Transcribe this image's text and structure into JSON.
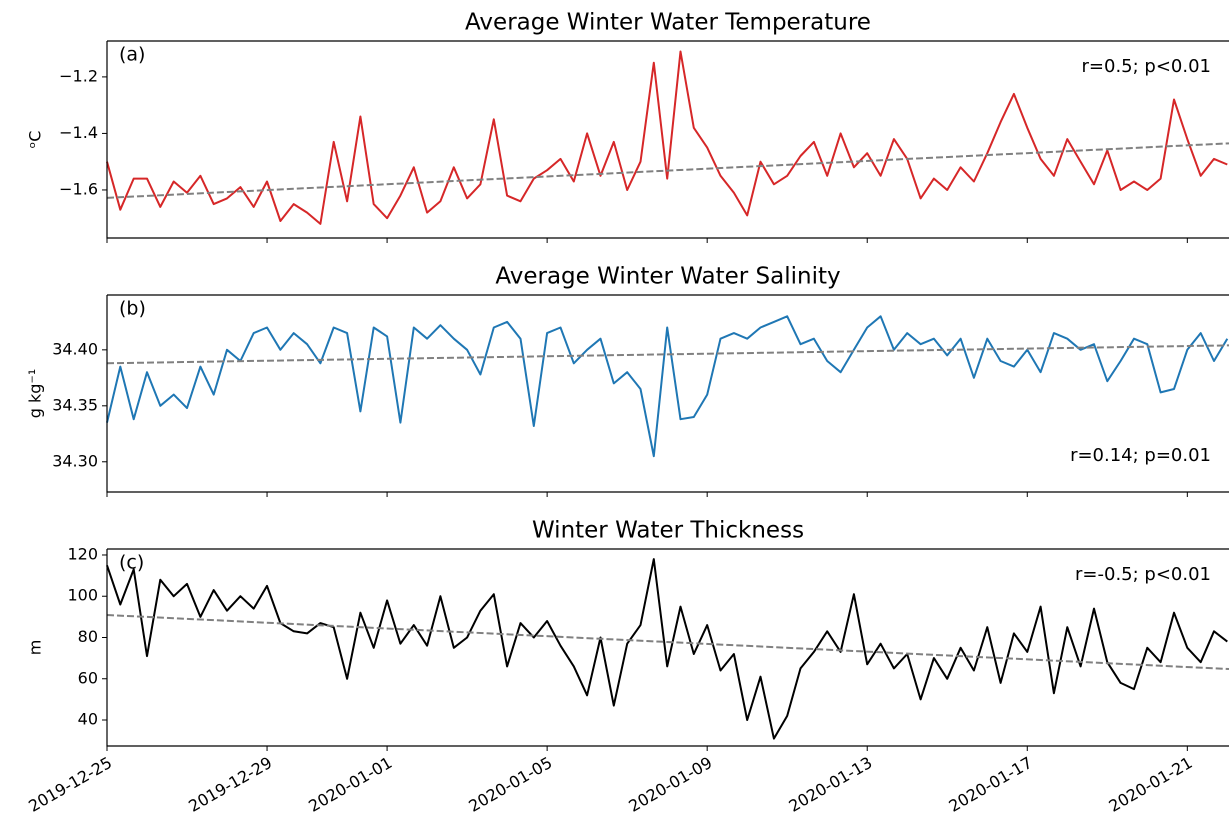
{
  "chart_data": [
    {
      "type": "line",
      "title": "Average Winter Water Temperature",
      "panel_label": "(a)",
      "annotation": "r=0.5; p<0.01",
      "ylabel": "ᵒC",
      "color": "#d62728",
      "x": [
        "2019-12-25T00:00",
        "2019-12-25T08:00",
        "2019-12-25T16:00",
        "2019-12-26T00:00",
        "2019-12-26T08:00",
        "2019-12-26T16:00",
        "2019-12-27T00:00",
        "2019-12-27T08:00",
        "2019-12-27T16:00",
        "2019-12-28T00:00",
        "2019-12-28T08:00",
        "2019-12-28T16:00",
        "2019-12-29T00:00",
        "2019-12-29T08:00",
        "2019-12-29T16:00",
        "2019-12-30T00:00",
        "2019-12-30T08:00",
        "2019-12-30T16:00",
        "2019-12-31T00:00",
        "2019-12-31T08:00",
        "2019-12-31T16:00",
        "2020-01-01T00:00",
        "2020-01-01T08:00",
        "2020-01-01T16:00",
        "2020-01-02T00:00",
        "2020-01-02T08:00",
        "2020-01-02T16:00",
        "2020-01-03T00:00",
        "2020-01-03T08:00",
        "2020-01-03T16:00",
        "2020-01-04T00:00",
        "2020-01-04T08:00",
        "2020-01-04T16:00",
        "2020-01-05T00:00",
        "2020-01-05T08:00",
        "2020-01-05T16:00",
        "2020-01-06T00:00",
        "2020-01-06T08:00",
        "2020-01-06T16:00",
        "2020-01-07T00:00",
        "2020-01-07T08:00",
        "2020-01-07T16:00",
        "2020-01-08T00:00",
        "2020-01-08T08:00",
        "2020-01-08T16:00",
        "2020-01-09T00:00",
        "2020-01-09T08:00",
        "2020-01-09T16:00",
        "2020-01-10T00:00",
        "2020-01-10T08:00",
        "2020-01-10T16:00",
        "2020-01-11T00:00",
        "2020-01-11T08:00",
        "2020-01-11T16:00",
        "2020-01-12T00:00",
        "2020-01-12T08:00",
        "2020-01-12T16:00",
        "2020-01-13T00:00",
        "2020-01-13T08:00",
        "2020-01-13T16:00",
        "2020-01-14T00:00",
        "2020-01-14T08:00",
        "2020-01-14T16:00",
        "2020-01-15T00:00",
        "2020-01-15T08:00",
        "2020-01-15T16:00",
        "2020-01-16T00:00",
        "2020-01-16T08:00",
        "2020-01-16T16:00",
        "2020-01-17T00:00",
        "2020-01-17T08:00",
        "2020-01-17T16:00",
        "2020-01-18T00:00",
        "2020-01-18T08:00",
        "2020-01-18T16:00",
        "2020-01-19T00:00",
        "2020-01-19T08:00",
        "2020-01-19T16:00",
        "2020-01-20T00:00",
        "2020-01-20T08:00",
        "2020-01-20T16:00",
        "2020-01-21T00:00",
        "2020-01-21T08:00",
        "2020-01-21T16:00",
        "2020-01-22T00:00"
      ],
      "values": [
        -1.5,
        -1.67,
        -1.56,
        -1.56,
        -1.66,
        -1.57,
        -1.61,
        -1.55,
        -1.65,
        -1.63,
        -1.59,
        -1.66,
        -1.57,
        -1.71,
        -1.65,
        -1.68,
        -1.72,
        -1.43,
        -1.64,
        -1.34,
        -1.65,
        -1.7,
        -1.62,
        -1.52,
        -1.68,
        -1.64,
        -1.52,
        -1.63,
        -1.58,
        -1.35,
        -1.62,
        -1.64,
        -1.56,
        -1.53,
        -1.49,
        -1.57,
        -1.4,
        -1.55,
        -1.43,
        -1.6,
        -1.5,
        -1.15,
        -1.56,
        -1.11,
        -1.38,
        -1.45,
        -1.55,
        -1.61,
        -1.69,
        -1.5,
        -1.58,
        -1.55,
        -1.48,
        -1.43,
        -1.55,
        -1.4,
        -1.52,
        -1.47,
        -1.55,
        -1.42,
        -1.49,
        -1.63,
        -1.56,
        -1.6,
        -1.52,
        -1.57,
        -1.47,
        -1.36,
        -1.26,
        -1.38,
        -1.49,
        -1.55,
        -1.42,
        -1.5,
        -1.58,
        -1.46,
        -1.6,
        -1.57,
        -1.6,
        -1.56,
        -1.28,
        -1.42,
        -1.55,
        -1.49,
        -1.51
      ],
      "trend_line": [
        -1.628,
        -1.435
      ],
      "xlim": [
        "2019-12-25T00:00",
        "2020-01-22T01:00"
      ],
      "ylim": [
        -1.77,
        -1.073
      ],
      "yticks": [
        {
          "value": -1.6,
          "label": "−1.6"
        },
        {
          "value": -1.4,
          "label": "−1.4"
        },
        {
          "value": -1.2,
          "label": "−1.2"
        }
      ]
    },
    {
      "type": "line",
      "title": "Average Winter Water Salinity",
      "panel_label": "(b)",
      "annotation": "r=0.14; p=0.01",
      "ylabel": "g kg⁻¹",
      "color": "#1f77b4",
      "x": [
        "2019-12-25T00:00",
        "2019-12-25T08:00",
        "2019-12-25T16:00",
        "2019-12-26T00:00",
        "2019-12-26T08:00",
        "2019-12-26T16:00",
        "2019-12-27T00:00",
        "2019-12-27T08:00",
        "2019-12-27T16:00",
        "2019-12-28T00:00",
        "2019-12-28T08:00",
        "2019-12-28T16:00",
        "2019-12-29T00:00",
        "2019-12-29T08:00",
        "2019-12-29T16:00",
        "2019-12-30T00:00",
        "2019-12-30T08:00",
        "2019-12-30T16:00",
        "2019-12-31T00:00",
        "2019-12-31T08:00",
        "2019-12-31T16:00",
        "2020-01-01T00:00",
        "2020-01-01T08:00",
        "2020-01-01T16:00",
        "2020-01-02T00:00",
        "2020-01-02T08:00",
        "2020-01-02T16:00",
        "2020-01-03T00:00",
        "2020-01-03T08:00",
        "2020-01-03T16:00",
        "2020-01-04T00:00",
        "2020-01-04T08:00",
        "2020-01-04T16:00",
        "2020-01-05T00:00",
        "2020-01-05T08:00",
        "2020-01-05T16:00",
        "2020-01-06T00:00",
        "2020-01-06T08:00",
        "2020-01-06T16:00",
        "2020-01-07T00:00",
        "2020-01-07T08:00",
        "2020-01-07T16:00",
        "2020-01-08T00:00",
        "2020-01-08T08:00",
        "2020-01-08T16:00",
        "2020-01-09T00:00",
        "2020-01-09T08:00",
        "2020-01-09T16:00",
        "2020-01-10T00:00",
        "2020-01-10T08:00",
        "2020-01-10T16:00",
        "2020-01-11T00:00",
        "2020-01-11T08:00",
        "2020-01-11T16:00",
        "2020-01-12T00:00",
        "2020-01-12T08:00",
        "2020-01-12T16:00",
        "2020-01-13T00:00",
        "2020-01-13T08:00",
        "2020-01-13T16:00",
        "2020-01-14T00:00",
        "2020-01-14T08:00",
        "2020-01-14T16:00",
        "2020-01-15T00:00",
        "2020-01-15T08:00",
        "2020-01-15T16:00",
        "2020-01-16T00:00",
        "2020-01-16T08:00",
        "2020-01-16T16:00",
        "2020-01-17T00:00",
        "2020-01-17T08:00",
        "2020-01-17T16:00",
        "2020-01-18T00:00",
        "2020-01-18T08:00",
        "2020-01-18T16:00",
        "2020-01-19T00:00",
        "2020-01-19T08:00",
        "2020-01-19T16:00",
        "2020-01-20T00:00",
        "2020-01-20T08:00",
        "2020-01-20T16:00",
        "2020-01-21T00:00",
        "2020-01-21T08:00",
        "2020-01-21T16:00",
        "2020-01-22T00:00"
      ],
      "values": [
        34.335,
        34.385,
        34.338,
        34.38,
        34.35,
        34.36,
        34.348,
        34.385,
        34.36,
        34.4,
        34.39,
        34.415,
        34.42,
        34.4,
        34.415,
        34.405,
        34.388,
        34.42,
        34.415,
        34.345,
        34.42,
        34.412,
        34.335,
        34.42,
        34.41,
        34.422,
        34.41,
        34.4,
        34.378,
        34.42,
        34.425,
        34.41,
        34.332,
        34.415,
        34.42,
        34.388,
        34.4,
        34.41,
        34.37,
        34.38,
        34.365,
        34.305,
        34.42,
        34.338,
        34.34,
        34.36,
        34.41,
        34.415,
        34.41,
        34.42,
        34.425,
        34.43,
        34.405,
        34.41,
        34.39,
        34.38,
        34.4,
        34.42,
        34.43,
        34.4,
        34.415,
        34.405,
        34.41,
        34.395,
        34.41,
        34.375,
        34.41,
        34.39,
        34.385,
        34.4,
        34.38,
        34.415,
        34.41,
        34.4,
        34.405,
        34.372,
        34.39,
        34.41,
        34.405,
        34.362,
        34.365,
        34.4,
        34.415,
        34.39,
        34.41
      ],
      "trend_line": [
        34.388,
        34.404
      ],
      "xlim": [
        "2019-12-25T00:00",
        "2020-01-22T01:00"
      ],
      "ylim": [
        34.273,
        34.449
      ],
      "yticks": [
        {
          "value": 34.3,
          "label": "34.30"
        },
        {
          "value": 34.35,
          "label": "34.35"
        },
        {
          "value": 34.4,
          "label": "34.40"
        }
      ]
    },
    {
      "type": "line",
      "title": "Winter Water Thickness",
      "panel_label": "(c)",
      "annotation": "r=-0.5; p<0.01",
      "ylabel": "m",
      "color": "#000000",
      "x": [
        "2019-12-25T00:00",
        "2019-12-25T08:00",
        "2019-12-25T16:00",
        "2019-12-26T00:00",
        "2019-12-26T08:00",
        "2019-12-26T16:00",
        "2019-12-27T00:00",
        "2019-12-27T08:00",
        "2019-12-27T16:00",
        "2019-12-28T00:00",
        "2019-12-28T08:00",
        "2019-12-28T16:00",
        "2019-12-29T00:00",
        "2019-12-29T08:00",
        "2019-12-29T16:00",
        "2019-12-30T00:00",
        "2019-12-30T08:00",
        "2019-12-30T16:00",
        "2019-12-31T00:00",
        "2019-12-31T08:00",
        "2019-12-31T16:00",
        "2020-01-01T00:00",
        "2020-01-01T08:00",
        "2020-01-01T16:00",
        "2020-01-02T00:00",
        "2020-01-02T08:00",
        "2020-01-02T16:00",
        "2020-01-03T00:00",
        "2020-01-03T08:00",
        "2020-01-03T16:00",
        "2020-01-04T00:00",
        "2020-01-04T08:00",
        "2020-01-04T16:00",
        "2020-01-05T00:00",
        "2020-01-05T08:00",
        "2020-01-05T16:00",
        "2020-01-06T00:00",
        "2020-01-06T08:00",
        "2020-01-06T16:00",
        "2020-01-07T00:00",
        "2020-01-07T08:00",
        "2020-01-07T16:00",
        "2020-01-08T00:00",
        "2020-01-08T08:00",
        "2020-01-08T16:00",
        "2020-01-09T00:00",
        "2020-01-09T08:00",
        "2020-01-09T16:00",
        "2020-01-10T00:00",
        "2020-01-10T08:00",
        "2020-01-10T16:00",
        "2020-01-11T00:00",
        "2020-01-11T08:00",
        "2020-01-11T16:00",
        "2020-01-12T00:00",
        "2020-01-12T08:00",
        "2020-01-12T16:00",
        "2020-01-13T00:00",
        "2020-01-13T08:00",
        "2020-01-13T16:00",
        "2020-01-14T00:00",
        "2020-01-14T08:00",
        "2020-01-14T16:00",
        "2020-01-15T00:00",
        "2020-01-15T08:00",
        "2020-01-15T16:00",
        "2020-01-16T00:00",
        "2020-01-16T08:00",
        "2020-01-16T16:00",
        "2020-01-17T00:00",
        "2020-01-17T08:00",
        "2020-01-17T16:00",
        "2020-01-18T00:00",
        "2020-01-18T08:00",
        "2020-01-18T16:00",
        "2020-01-19T00:00",
        "2020-01-19T08:00",
        "2020-01-19T16:00",
        "2020-01-20T00:00",
        "2020-01-20T08:00",
        "2020-01-20T16:00",
        "2020-01-21T00:00",
        "2020-01-21T08:00",
        "2020-01-21T16:00",
        "2020-01-22T00:00"
      ],
      "values": [
        115,
        96,
        113,
        71,
        108,
        100,
        106,
        90,
        103,
        93,
        100,
        94,
        105,
        87,
        83,
        82,
        87,
        85,
        60,
        92,
        75,
        98,
        77,
        86,
        76,
        100,
        75,
        80,
        93,
        101,
        66,
        87,
        80,
        88,
        76,
        66,
        52,
        80,
        47,
        77,
        86,
        118,
        66,
        95,
        72,
        86,
        64,
        72,
        40,
        61,
        31,
        42,
        65,
        73,
        83,
        73,
        101,
        67,
        77,
        65,
        72,
        50,
        70,
        60,
        75,
        64,
        85,
        58,
        82,
        73,
        95,
        53,
        85,
        66,
        94,
        68,
        58,
        55,
        75,
        68,
        92,
        75,
        68,
        83,
        78
      ],
      "trend_line": [
        90.9,
        64.7
      ],
      "xlim": [
        "2019-12-25T00:00",
        "2020-01-22T01:00"
      ],
      "ylim": [
        27.4,
        122.9
      ],
      "yticks": [
        40,
        60,
        80,
        100,
        120
      ],
      "xticks": [
        "2019-12-25",
        "2019-12-29",
        "2020-01-01",
        "2020-01-05",
        "2020-01-09",
        "2020-01-13",
        "2020-01-17",
        "2020-01-21"
      ]
    }
  ]
}
